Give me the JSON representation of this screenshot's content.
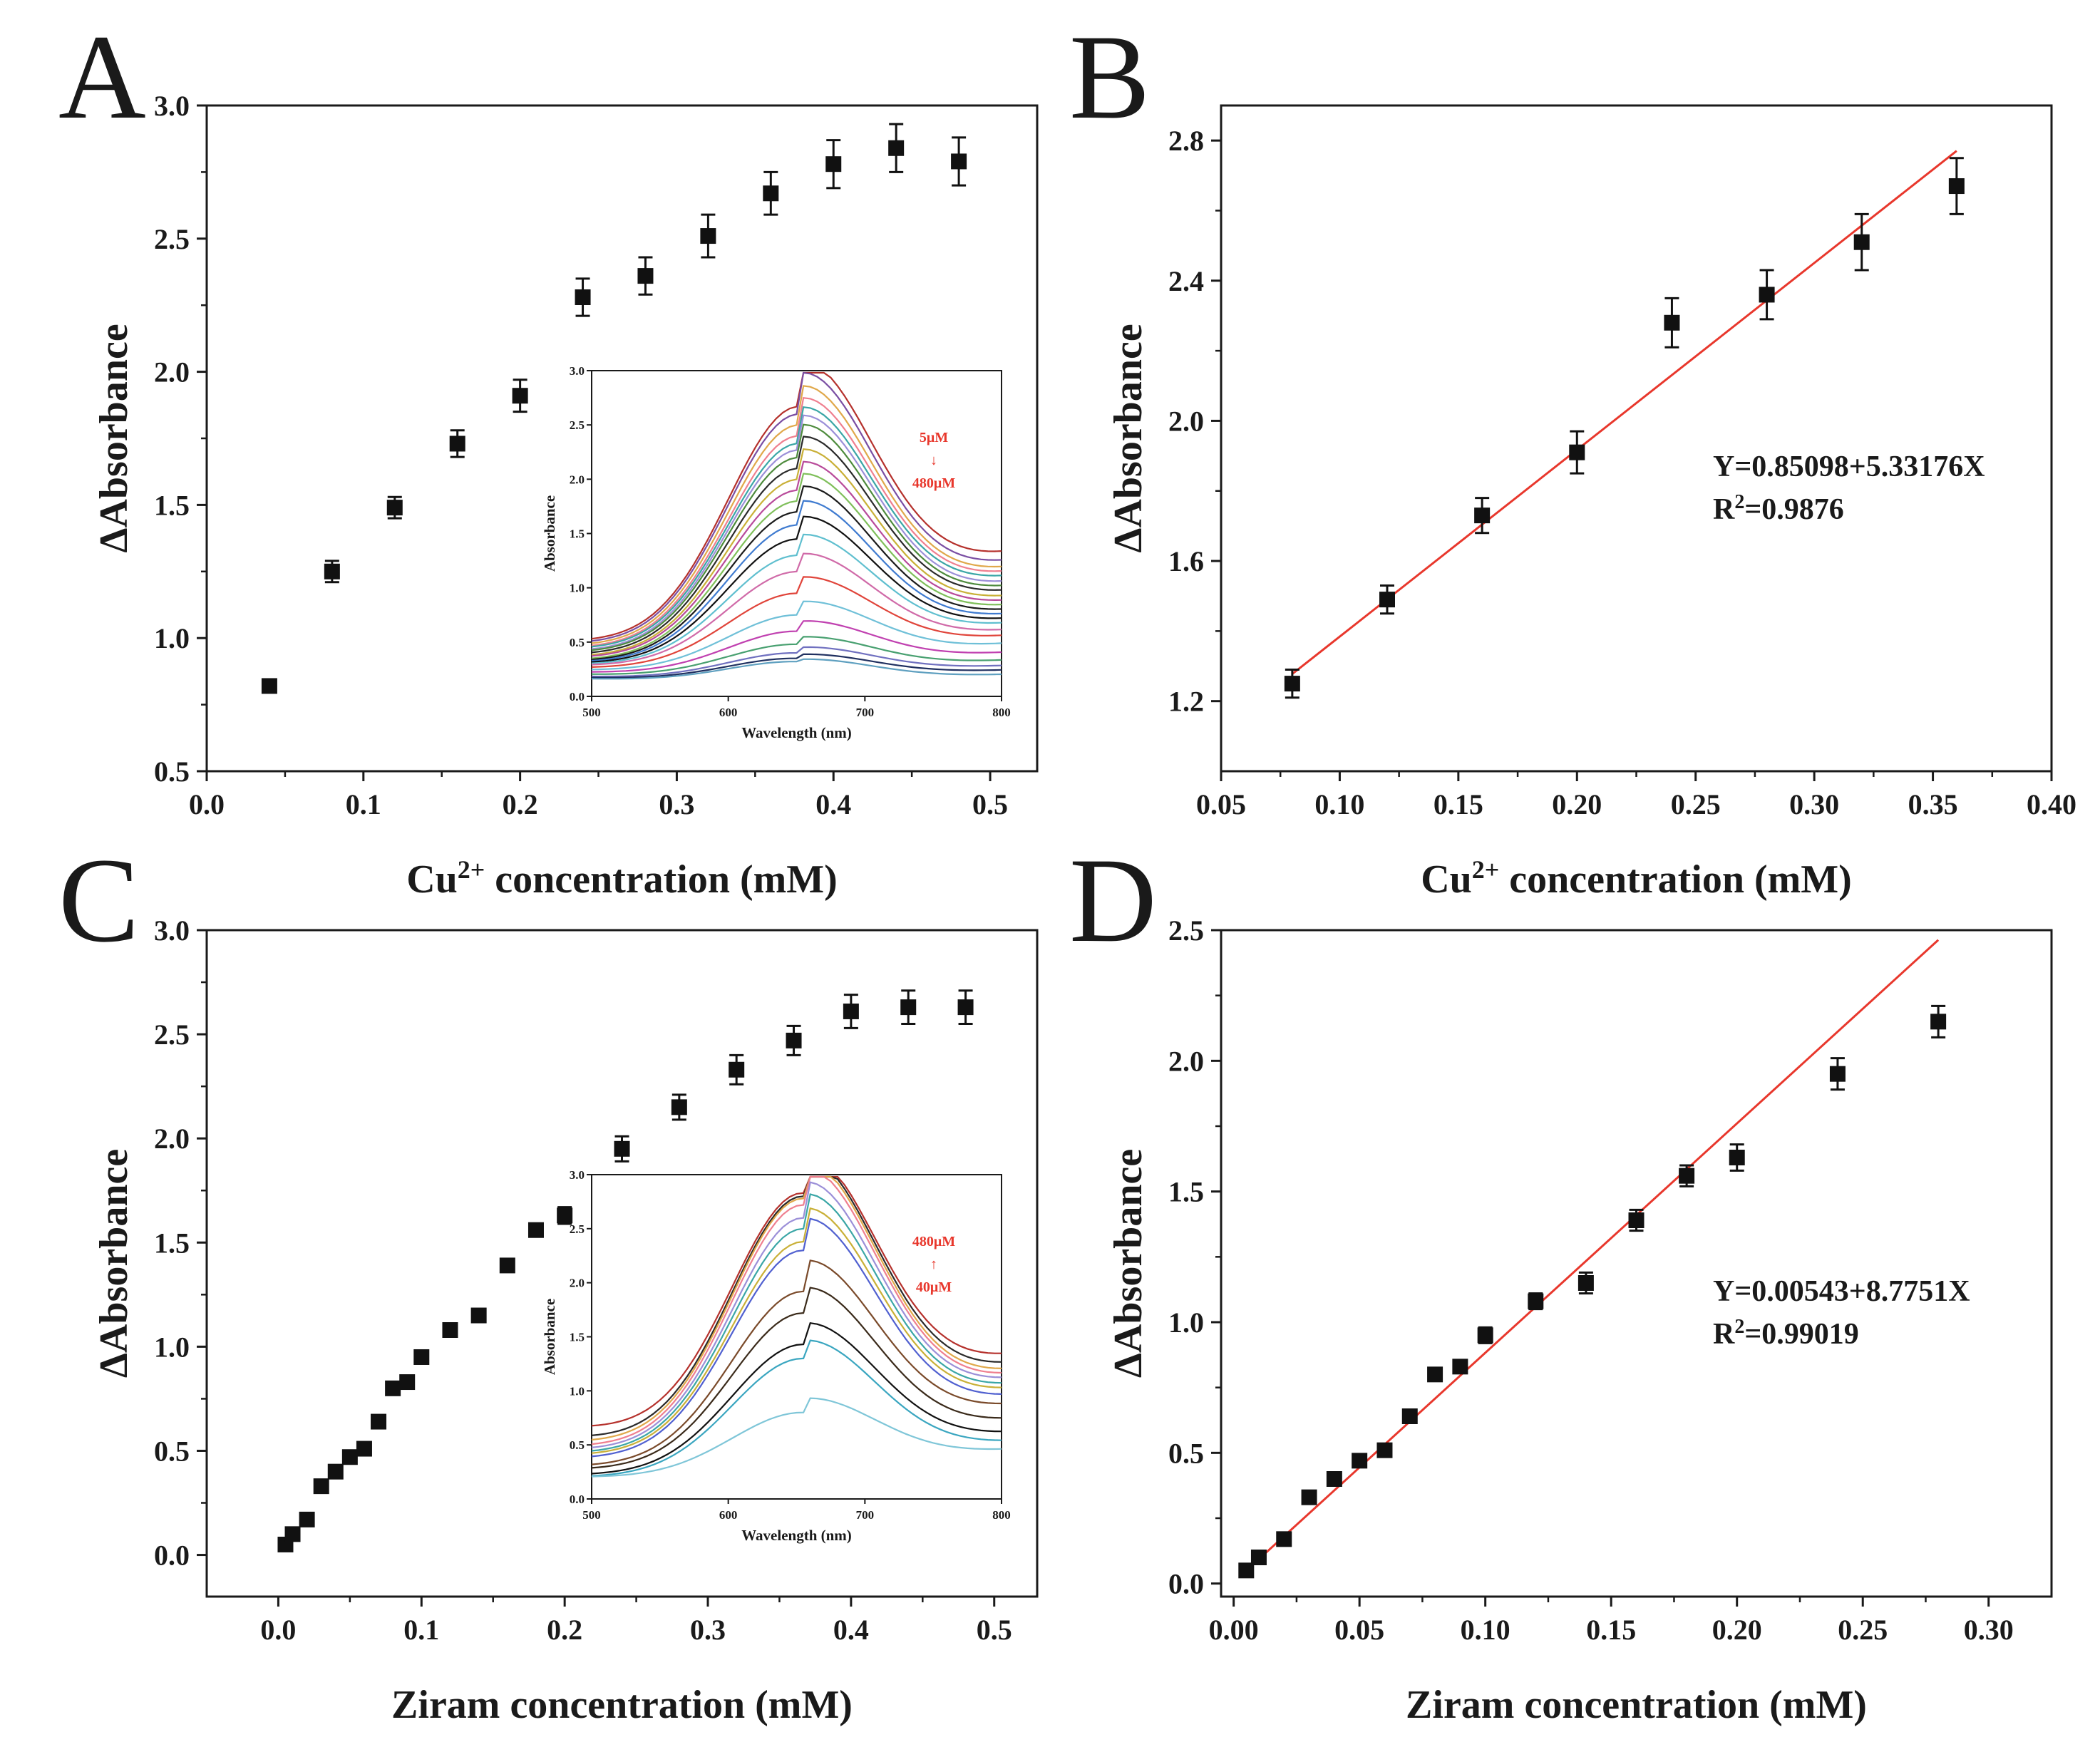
{
  "colors": {
    "marker": "#111111",
    "fit_line": "#e8372c",
    "annotation": "#e8372c",
    "axis": "#1a1a1a"
  },
  "chart_data": [
    {
      "panel": "A",
      "type": "scatter",
      "xlabel": "Cu",
      "xlabel_sup": "2+",
      "xlabel_tail": " concentration (mM)",
      "ylabel": "ΔAbsorbance",
      "xlim": [
        0.0,
        0.53
      ],
      "ylim": [
        0.5,
        3.0
      ],
      "xticks": [
        0.0,
        0.1,
        0.2,
        0.3,
        0.4,
        0.5
      ],
      "xtick_labels": [
        "0.0",
        "0.1",
        "0.2",
        "0.3",
        "0.4",
        "0.5"
      ],
      "yticks": [
        0.5,
        1.0,
        1.5,
        2.0,
        2.5,
        3.0
      ],
      "ytick_labels": [
        "0.5",
        "1.0",
        "1.5",
        "2.0",
        "2.5",
        "3.0"
      ],
      "x": [
        0.04,
        0.08,
        0.12,
        0.16,
        0.2,
        0.24,
        0.28,
        0.32,
        0.36,
        0.4,
        0.44,
        0.48
      ],
      "y": [
        0.82,
        1.25,
        1.49,
        1.73,
        1.91,
        2.28,
        2.36,
        2.51,
        2.67,
        2.78,
        2.84,
        2.79
      ],
      "err": [
        0.02,
        0.04,
        0.04,
        0.05,
        0.06,
        0.07,
        0.07,
        0.08,
        0.08,
        0.09,
        0.09,
        0.09
      ],
      "inset": {
        "type": "line",
        "xlabel": "Wavelength (nm)",
        "ylabel": "Absorbance",
        "xlim": [
          500,
          800
        ],
        "ylim": [
          0.0,
          3.0
        ],
        "xticks": [
          500,
          600,
          700,
          800
        ],
        "xtick_labels": [
          "500",
          "600",
          "700",
          "800"
        ],
        "yticks": [
          0.0,
          0.5,
          1.0,
          1.5,
          2.0,
          2.5,
          3.0
        ],
        "ytick_labels": [
          "0.0",
          "0.5",
          "1.0",
          "1.5",
          "2.0",
          "2.5",
          "3.0"
        ],
        "annotation": [
          "5μM",
          "↓",
          "480μM"
        ],
        "peak_nm": 652,
        "peaks": [
          2.67,
          2.6,
          2.5,
          2.4,
          2.33,
          2.27,
          2.2,
          2.1,
          2.0,
          1.9,
          1.8,
          1.7,
          1.58,
          1.45,
          1.3,
          1.15,
          0.95,
          0.75,
          0.6,
          0.48,
          0.4,
          0.35,
          0.32
        ],
        "base500": [
          0.5,
          0.48,
          0.46,
          0.44,
          0.43,
          0.41,
          0.4,
          0.38,
          0.36,
          0.35,
          0.33,
          0.32,
          0.31,
          0.3,
          0.29,
          0.28,
          0.26,
          0.24,
          0.22,
          0.2,
          0.18,
          0.17,
          0.16
        ],
        "base800": [
          1.3,
          1.22,
          1.16,
          1.12,
          1.08,
          1.03,
          0.99,
          0.95,
          0.9,
          0.86,
          0.82,
          0.78,
          0.74,
          0.7,
          0.66,
          0.6,
          0.55,
          0.48,
          0.4,
          0.33,
          0.28,
          0.24,
          0.2
        ],
        "colors": [
          "#b5312c",
          "#7a4ea3",
          "#e0a84a",
          "#ef7f8f",
          "#3aa6a6",
          "#9b8fd8",
          "#4d8b3c",
          "#2a2a2a",
          "#c9b037",
          "#b84a9a",
          "#7fbf5a",
          "#1a1a1a",
          "#3f7bd0",
          "#111111",
          "#5fbfcf",
          "#d06aa8",
          "#e0443a",
          "#6fc0d8",
          "#c040b0",
          "#48a070",
          "#7070c0",
          "#203060",
          "#5fa0c0"
        ]
      }
    },
    {
      "panel": "B",
      "type": "scatter",
      "xlabel": "Cu",
      "xlabel_sup": "2+",
      "xlabel_tail": " concentration (mM)",
      "ylabel": "ΔAbsorbance",
      "xlim": [
        0.05,
        0.4
      ],
      "ylim": [
        1.0,
        2.9
      ],
      "xticks": [
        0.05,
        0.1,
        0.15,
        0.2,
        0.25,
        0.3,
        0.35,
        0.4
      ],
      "xtick_labels": [
        "0.05",
        "0.10",
        "0.15",
        "0.20",
        "0.25",
        "0.30",
        "0.35",
        "0.40"
      ],
      "yticks": [
        1.2,
        1.6,
        2.0,
        2.4,
        2.8
      ],
      "ytick_labels": [
        "1.2",
        "1.6",
        "2.0",
        "2.4",
        "2.8"
      ],
      "x": [
        0.08,
        0.12,
        0.16,
        0.2,
        0.24,
        0.28,
        0.32,
        0.36
      ],
      "y": [
        1.25,
        1.49,
        1.73,
        1.91,
        2.28,
        2.36,
        2.51,
        2.67
      ],
      "err": [
        0.04,
        0.04,
        0.05,
        0.06,
        0.07,
        0.07,
        0.08,
        0.08
      ],
      "fit": {
        "intercept": 0.85098,
        "slope": 5.33176,
        "x_start": 0.08,
        "x_end": 0.36
      },
      "equation": "Y=0.85098+5.33176X",
      "r2_label": "R",
      "r2_sup": "2",
      "r2_value": "=0.9876"
    },
    {
      "panel": "C",
      "type": "scatter",
      "xlabel": "Ziram concentration (mM)",
      "xlabel_sup": "",
      "xlabel_tail": "",
      "ylabel": "ΔAbsorbance",
      "xlim": [
        -0.05,
        0.53
      ],
      "ylim": [
        -0.2,
        3.0
      ],
      "xticks": [
        0.0,
        0.1,
        0.2,
        0.3,
        0.4,
        0.5
      ],
      "xtick_labels": [
        "0.0",
        "0.1",
        "0.2",
        "0.3",
        "0.4",
        "0.5"
      ],
      "yticks": [
        0.0,
        0.5,
        1.0,
        1.5,
        2.0,
        2.5,
        3.0
      ],
      "ytick_labels": [
        "0.0",
        "0.5",
        "1.0",
        "1.5",
        "2.0",
        "2.5",
        "3.0"
      ],
      "x": [
        0.005,
        0.01,
        0.02,
        0.03,
        0.04,
        0.05,
        0.06,
        0.07,
        0.08,
        0.09,
        0.1,
        0.12,
        0.14,
        0.16,
        0.18,
        0.2,
        0.24,
        0.28,
        0.32,
        0.36,
        0.4,
        0.44,
        0.48
      ],
      "y": [
        0.05,
        0.1,
        0.17,
        0.33,
        0.4,
        0.47,
        0.51,
        0.64,
        0.8,
        0.83,
        0.95,
        1.08,
        1.15,
        1.39,
        1.56,
        1.63,
        1.95,
        2.15,
        2.33,
        2.47,
        2.61,
        2.63,
        2.63
      ],
      "err": [
        0,
        0,
        0,
        0,
        0,
        0,
        0,
        0,
        0,
        0,
        0,
        0,
        0,
        0,
        0.03,
        0.04,
        0.06,
        0.06,
        0.07,
        0.07,
        0.08,
        0.08,
        0.08
      ],
      "inset": {
        "type": "line",
        "xlabel": "Wavelength (nm)",
        "ylabel": "Absorbance",
        "xlim": [
          500,
          800
        ],
        "ylim": [
          0.0,
          3.0
        ],
        "xticks": [
          500,
          600,
          700,
          800
        ],
        "xtick_labels": [
          "500",
          "600",
          "700",
          "800"
        ],
        "yticks": [
          0.0,
          0.5,
          1.0,
          1.5,
          2.0,
          2.5,
          3.0
        ],
        "ytick_labels": [
          "0.0",
          "0.5",
          "1.0",
          "1.5",
          "2.0",
          "2.5",
          "3.0"
        ],
        "annotation": [
          "480μM",
          "↑",
          "40μM"
        ],
        "peak_nm": 655,
        "peaks": [
          2.83,
          2.8,
          2.78,
          2.72,
          2.6,
          2.5,
          2.38,
          2.3,
          1.92,
          1.72,
          1.43,
          1.3,
          0.8
        ],
        "base500": [
          0.65,
          0.56,
          0.52,
          0.48,
          0.45,
          0.42,
          0.4,
          0.37,
          0.3,
          0.27,
          0.22,
          0.2,
          0.2
        ],
        "base800": [
          1.3,
          1.22,
          1.16,
          1.12,
          1.08,
          1.03,
          0.99,
          0.93,
          0.85,
          0.72,
          0.6,
          0.52,
          0.45
        ],
        "colors": [
          "#b5312c",
          "#2a2a2a",
          "#e0a84a",
          "#ef7f8f",
          "#9b8fd8",
          "#3aa6a6",
          "#c9b037",
          "#5060d0",
          "#7a4a2a",
          "#3a2a1a",
          "#111111",
          "#3aa6c0",
          "#7fc6d8"
        ]
      }
    },
    {
      "panel": "D",
      "type": "scatter",
      "xlabel": "Ziram concentration (mM)",
      "xlabel_sup": "",
      "xlabel_tail": "",
      "ylabel": "ΔAbsorbance",
      "xlim": [
        -0.005,
        0.325
      ],
      "ylim": [
        -0.05,
        2.5
      ],
      "xticks": [
        0.0,
        0.05,
        0.1,
        0.15,
        0.2,
        0.25,
        0.3
      ],
      "xtick_labels": [
        "0.00",
        "0.05",
        "0.10",
        "0.15",
        "0.20",
        "0.25",
        "0.30"
      ],
      "yticks": [
        0.0,
        0.5,
        1.0,
        1.5,
        2.0,
        2.5
      ],
      "ytick_labels": [
        "0.0",
        "0.5",
        "1.0",
        "1.5",
        "2.0",
        "2.5"
      ],
      "x": [
        0.005,
        0.01,
        0.02,
        0.03,
        0.04,
        0.05,
        0.06,
        0.07,
        0.08,
        0.09,
        0.1,
        0.12,
        0.14,
        0.16,
        0.18,
        0.2,
        0.24,
        0.28
      ],
      "y": [
        0.05,
        0.1,
        0.17,
        0.33,
        0.4,
        0.47,
        0.51,
        0.64,
        0.8,
        0.83,
        0.95,
        1.08,
        1.15,
        1.39,
        1.56,
        1.63,
        1.95,
        2.15
      ],
      "err": [
        0,
        0,
        0,
        0,
        0,
        0,
        0,
        0,
        0,
        0,
        0.03,
        0.03,
        0.04,
        0.04,
        0.04,
        0.05,
        0.06,
        0.06
      ],
      "fit": {
        "intercept": 0.00543,
        "slope": 8.7751,
        "x_start": 0.005,
        "x_end": 0.28
      },
      "equation": "Y=0.00543+8.7751X",
      "r2_label": "R",
      "r2_sup": "2",
      "r2_value": "=0.99019"
    }
  ]
}
